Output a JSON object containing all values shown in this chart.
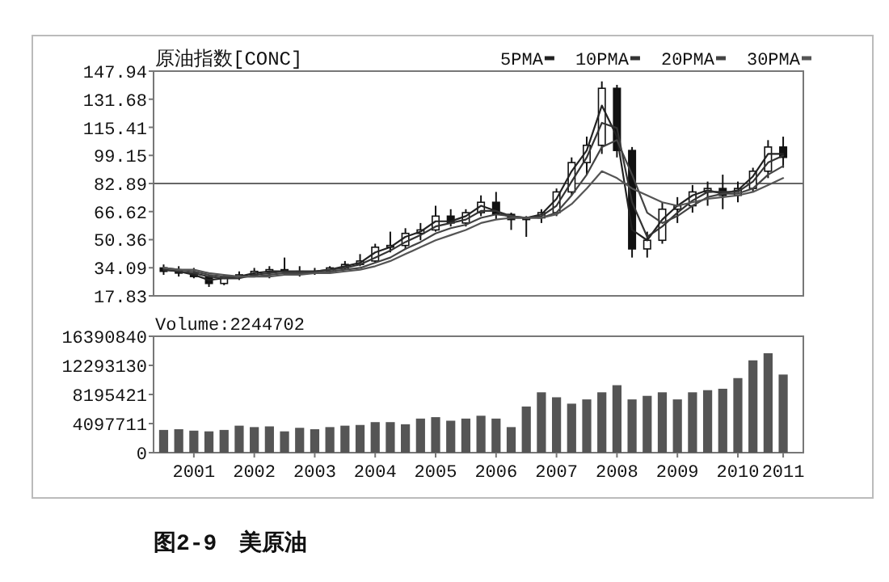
{
  "chart_data": [
    {
      "type": "candlestick",
      "title": "原油指数[CONC]",
      "legend": "top right",
      "tick_labels": "y",
      "x": [
        "2001-01",
        "2001-04",
        "2001-07",
        "2001-10",
        "2002-01",
        "2002-04",
        "2002-07",
        "2002-10",
        "2003-01",
        "2003-04",
        "2003-07",
        "2003-10",
        "2004-01",
        "2004-04",
        "2004-07",
        "2004-10",
        "2005-01",
        "2005-04",
        "2005-07",
        "2005-10",
        "2006-01",
        "2006-04",
        "2006-07",
        "2006-10",
        "2007-01",
        "2007-04",
        "2007-07",
        "2007-10",
        "2008-01",
        "2008-04",
        "2008-07",
        "2008-10",
        "2009-01",
        "2009-04",
        "2009-07",
        "2009-10",
        "2010-01",
        "2010-04",
        "2010-07",
        "2010-10",
        "2011-01",
        "2011-04"
      ],
      "ohlc": [
        [
          34,
          36,
          30,
          32
        ],
        [
          32,
          35,
          29,
          31
        ],
        [
          31,
          34,
          28,
          29
        ],
        [
          29,
          30,
          23,
          25
        ],
        [
          25,
          30,
          24,
          29
        ],
        [
          29,
          32,
          27,
          30
        ],
        [
          30,
          34,
          29,
          32
        ],
        [
          32,
          35,
          28,
          33
        ],
        [
          33,
          40,
          30,
          32
        ],
        [
          32,
          35,
          29,
          31
        ],
        [
          31,
          34,
          30,
          32
        ],
        [
          32,
          35,
          31,
          34
        ],
        [
          34,
          38,
          33,
          36
        ],
        [
          36,
          42,
          35,
          38
        ],
        [
          38,
          48,
          37,
          46
        ],
        [
          46,
          55,
          43,
          47
        ],
        [
          47,
          57,
          45,
          54
        ],
        [
          54,
          60,
          50,
          56
        ],
        [
          56,
          70,
          55,
          64
        ],
        [
          64,
          68,
          58,
          60
        ],
        [
          60,
          68,
          58,
          66
        ],
        [
          66,
          76,
          64,
          72
        ],
        [
          72,
          78,
          62,
          65
        ],
        [
          65,
          66,
          56,
          62
        ],
        [
          62,
          64,
          52,
          63
        ],
        [
          63,
          68,
          60,
          66
        ],
        [
          66,
          80,
          64,
          78
        ],
        [
          78,
          98,
          76,
          95
        ],
        [
          95,
          110,
          88,
          105
        ],
        [
          105,
          142,
          100,
          138
        ],
        [
          138,
          140,
          98,
          102
        ],
        [
          102,
          104,
          40,
          45
        ],
        [
          45,
          55,
          40,
          50
        ],
        [
          50,
          72,
          48,
          68
        ],
        [
          68,
          75,
          60,
          70
        ],
        [
          70,
          82,
          66,
          78
        ],
        [
          78,
          84,
          70,
          80
        ],
        [
          80,
          88,
          68,
          76
        ],
        [
          76,
          84,
          72,
          80
        ],
        [
          80,
          92,
          78,
          90
        ],
        [
          90,
          108,
          86,
          104
        ],
        [
          104,
          110,
          92,
          98
        ]
      ],
      "series": [
        {
          "name": "5PMA",
          "type": "line",
          "color": "#222222",
          "values": [
            33,
            32,
            30,
            27,
            28,
            29,
            31,
            32,
            32,
            31,
            32,
            33,
            35,
            37,
            43,
            46,
            52,
            55,
            61,
            61,
            64,
            70,
            67,
            63,
            63,
            65,
            74,
            90,
            102,
            128,
            110,
            56,
            50,
            62,
            70,
            76,
            79,
            77,
            79,
            87,
            100,
            100
          ]
        },
        {
          "name": "10PMA",
          "type": "line",
          "color": "#333333",
          "values": [
            33,
            32,
            31,
            29,
            28,
            28,
            30,
            31,
            32,
            32,
            32,
            33,
            34,
            36,
            40,
            44,
            49,
            53,
            58,
            60,
            62,
            67,
            67,
            64,
            63,
            64,
            70,
            84,
            98,
            118,
            115,
            72,
            52,
            58,
            66,
            73,
            78,
            78,
            78,
            84,
            95,
            99
          ]
        },
        {
          "name": "20PMA",
          "type": "line",
          "color": "#444444",
          "values": [
            34,
            33,
            32,
            30,
            29,
            29,
            29,
            30,
            31,
            31,
            31,
            32,
            33,
            34,
            37,
            40,
            45,
            49,
            54,
            57,
            59,
            63,
            65,
            64,
            63,
            63,
            66,
            76,
            88,
            104,
            108,
            88,
            66,
            60,
            64,
            70,
            75,
            77,
            77,
            80,
            88,
            93
          ]
        },
        {
          "name": "30PMA",
          "type": "line",
          "color": "#555555",
          "values": [
            34,
            33,
            33,
            31,
            30,
            29,
            29,
            29,
            30,
            30,
            31,
            31,
            32,
            33,
            35,
            38,
            42,
            46,
            50,
            53,
            56,
            60,
            62,
            63,
            63,
            63,
            65,
            71,
            80,
            90,
            86,
            80,
            76,
            72,
            70,
            72,
            74,
            75,
            76,
            78,
            82,
            86
          ]
        }
      ],
      "xlim": [
        "2000-11",
        "2011-08"
      ],
      "ylim": [
        17.83,
        147.94
      ],
      "yticks": [
        17.83,
        34.09,
        50.36,
        66.62,
        82.89,
        99.15,
        115.41,
        131.68,
        147.94
      ],
      "ref_lines": [
        {
          "axis": "y",
          "value": 82.89
        }
      ]
    },
    {
      "type": "bar",
      "title": "Volume:2244702",
      "color": "#555555",
      "x": [
        "2001-01",
        "2001-04",
        "2001-07",
        "2001-10",
        "2002-01",
        "2002-04",
        "2002-07",
        "2002-10",
        "2003-01",
        "2003-04",
        "2003-07",
        "2003-10",
        "2004-01",
        "2004-04",
        "2004-07",
        "2004-10",
        "2005-01",
        "2005-04",
        "2005-07",
        "2005-10",
        "2006-01",
        "2006-04",
        "2006-07",
        "2006-10",
        "2007-01",
        "2007-04",
        "2007-07",
        "2007-10",
        "2008-01",
        "2008-04",
        "2008-07",
        "2008-10",
        "2009-01",
        "2009-04",
        "2009-07",
        "2009-10",
        "2010-01",
        "2010-04",
        "2010-07",
        "2010-10",
        "2011-01",
        "2011-04"
      ],
      "values": [
        3200000,
        3300000,
        3100000,
        3000000,
        3200000,
        3800000,
        3600000,
        3700000,
        3000000,
        3500000,
        3300000,
        3600000,
        3800000,
        3900000,
        4300000,
        4300000,
        4000000,
        4800000,
        5000000,
        4500000,
        4800000,
        5200000,
        4800000,
        3600000,
        6500000,
        8500000,
        7800000,
        6900000,
        7500000,
        8500000,
        9500000,
        7500000,
        8000000,
        8500000,
        7500000,
        8500000,
        8800000,
        9000000,
        10500000,
        13000000,
        14000000,
        11000000
      ],
      "xlim": [
        "2000-11",
        "2011-08"
      ],
      "ylim": [
        0,
        16390840
      ],
      "yticks": [
        0,
        4097711,
        8195421,
        12293130,
        16390840
      ],
      "xticks": [
        {
          "value": "2001-07",
          "label": "2001"
        },
        {
          "value": "2002-07",
          "label": "2002"
        },
        {
          "value": "2003-07",
          "label": "2003"
        },
        {
          "value": "2004-07",
          "label": "2004"
        },
        {
          "value": "2005-07",
          "label": "2005"
        },
        {
          "value": "2006-07",
          "label": "2006"
        },
        {
          "value": "2007-07",
          "label": "2007"
        },
        {
          "value": "2008-07",
          "label": "2008"
        },
        {
          "value": "2009-07",
          "label": "2009"
        },
        {
          "value": "2010-07",
          "label": "2010"
        },
        {
          "value": "2011-04",
          "label": "2011"
        }
      ],
      "annotations": [
        "图2-9　美原油"
      ]
    }
  ]
}
